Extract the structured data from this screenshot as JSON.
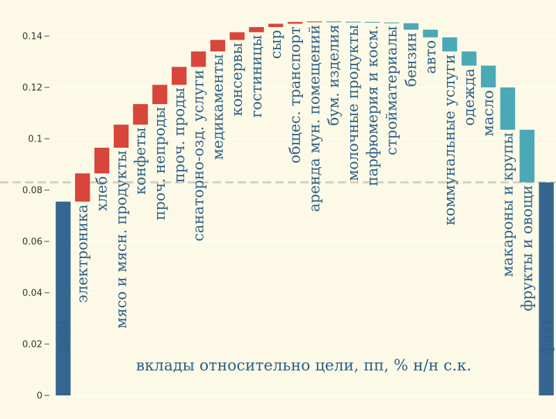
{
  "chart_data": {
    "type": "bar",
    "subtype": "waterfall",
    "title": "",
    "xlabel": "",
    "ylabel": "",
    "ylim": [
      0,
      0.15
    ],
    "yticks": [
      0,
      0.02,
      0.04,
      0.06,
      0.08,
      0.1,
      0.12,
      0.14
    ],
    "ytick_labels": [
      "0",
      "0.02",
      "0.04",
      "0.06",
      "0.08",
      "0.1",
      "0.12",
      "0.14"
    ],
    "reference_line": 0.083,
    "annotation": "вклады относительно цели, пп, % н/н с.к.",
    "colors": {
      "total": "#356690",
      "increase": "#d8453a",
      "decrease": "#4ba8b7",
      "reference": "#cfcfc4",
      "grid": "#ffffff"
    },
    "bars": [
      {
        "label": "цель",
        "kind": "total",
        "start": 0,
        "end": 0.0755
      },
      {
        "label": "электроника",
        "kind": "increase",
        "start": 0.0755,
        "end": 0.0865
      },
      {
        "label": "хлеб",
        "kind": "increase",
        "start": 0.0865,
        "end": 0.0965
      },
      {
        "label": "мясо и мясн. продукты",
        "kind": "increase",
        "start": 0.0965,
        "end": 0.1055
      },
      {
        "label": "конфеты",
        "kind": "increase",
        "start": 0.1055,
        "end": 0.1135
      },
      {
        "label": "проч. непроды",
        "kind": "increase",
        "start": 0.1135,
        "end": 0.121
      },
      {
        "label": "проч. проды",
        "kind": "increase",
        "start": 0.121,
        "end": 0.128
      },
      {
        "label": "санаторно-озд. услуги",
        "kind": "increase",
        "start": 0.128,
        "end": 0.134
      },
      {
        "label": "медикаменты",
        "kind": "increase",
        "start": 0.134,
        "end": 0.1385
      },
      {
        "label": "консервы",
        "kind": "increase",
        "start": 0.1385,
        "end": 0.1415
      },
      {
        "label": "гостиницы",
        "kind": "increase",
        "start": 0.1415,
        "end": 0.1435
      },
      {
        "label": "сыр",
        "kind": "increase",
        "start": 0.1435,
        "end": 0.1448
      },
      {
        "label": "общес. транспорт",
        "kind": "increase",
        "start": 0.1448,
        "end": 0.1455
      },
      {
        "label": "аренда мун. помещений",
        "kind": "increase",
        "start": 0.1455,
        "end": 0.1457
      },
      {
        "label": "бум. изделия",
        "kind": "decrease",
        "start": 0.1457,
        "end": 0.1456
      },
      {
        "label": "молочные продукты",
        "kind": "decrease",
        "start": 0.1456,
        "end": 0.1455
      },
      {
        "label": "парфюмерия и косм.",
        "kind": "decrease",
        "start": 0.1455,
        "end": 0.1453
      },
      {
        "label": "стройматериалы",
        "kind": "decrease",
        "start": 0.1453,
        "end": 0.145
      },
      {
        "label": "бензин",
        "kind": "decrease",
        "start": 0.145,
        "end": 0.1425
      },
      {
        "label": "авто",
        "kind": "decrease",
        "start": 0.1425,
        "end": 0.1395
      },
      {
        "label": "коммунальные услуги",
        "kind": "decrease",
        "start": 0.1395,
        "end": 0.134
      },
      {
        "label": "одежда",
        "kind": "decrease",
        "start": 0.134,
        "end": 0.1285
      },
      {
        "label": "масло",
        "kind": "decrease",
        "start": 0.1285,
        "end": 0.12
      },
      {
        "label": "макароны и крупы",
        "kind": "decrease",
        "start": 0.12,
        "end": 0.1035
      },
      {
        "label": "фрукты и овощи",
        "kind": "decrease",
        "start": 0.1035,
        "end": 0.083
      },
      {
        "label": "факт",
        "kind": "total",
        "start": 0,
        "end": 0.083
      }
    ]
  }
}
